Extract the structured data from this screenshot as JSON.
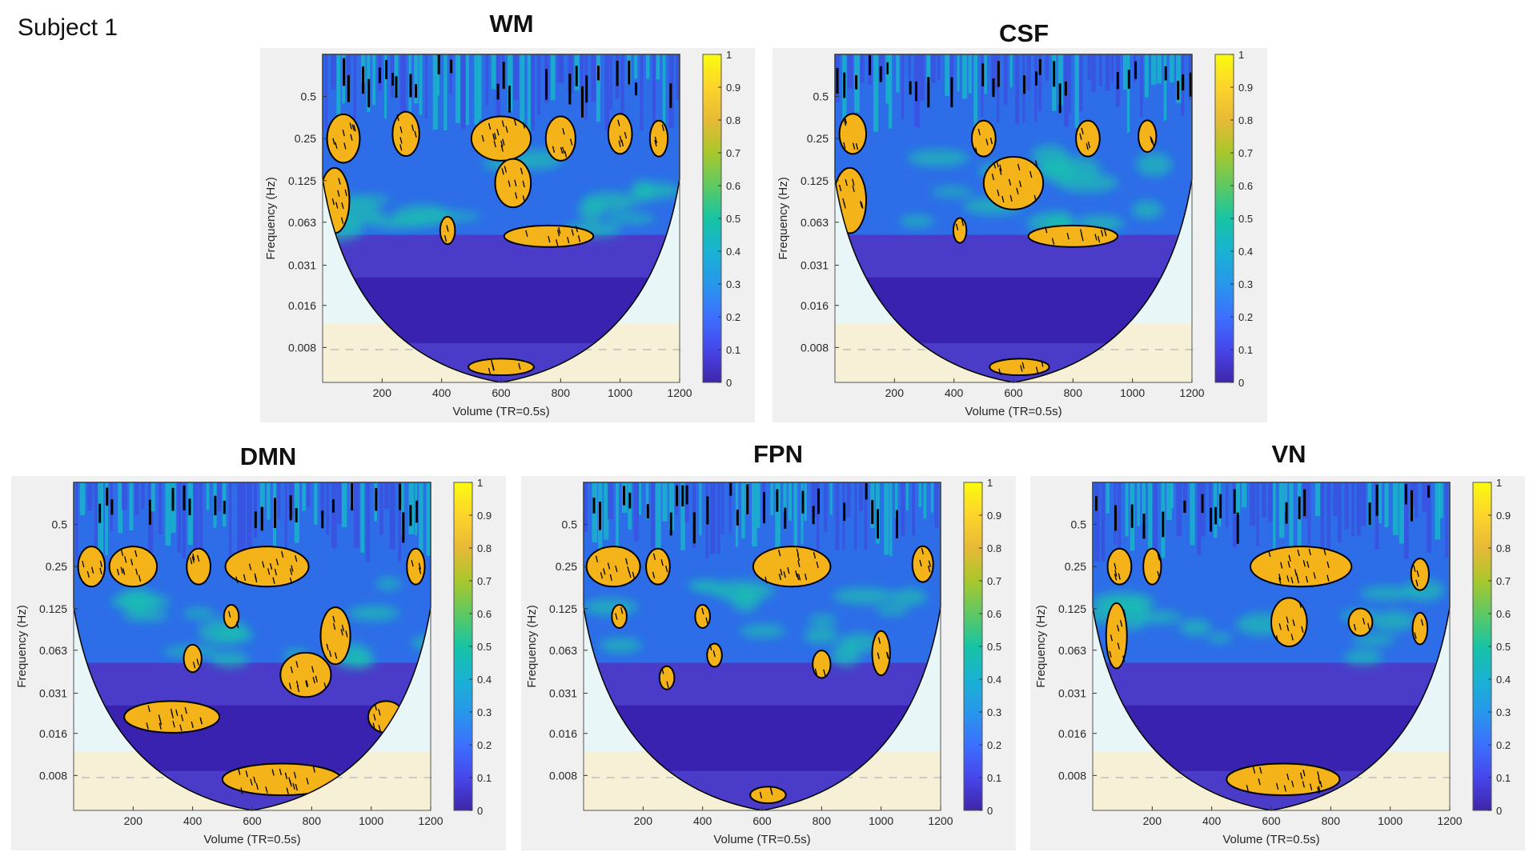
{
  "subject_label": "Subject 1",
  "colors": {
    "panel_bg": "#f0f0f0",
    "contour": "#000000",
    "significant": "#f5b31a",
    "low": "#3d1fa6",
    "high": "#f9fb0e"
  },
  "chart_data": [
    {
      "type": "heatmap",
      "title": "WM",
      "xlabel": "Volume (TR=0.5s)",
      "ylabel": "Frequency (Hz)",
      "xticks": [
        "200",
        "400",
        "600",
        "800",
        "1000",
        "1200"
      ],
      "yticks": [
        "0.5",
        "0.25",
        "0.125",
        "0.063",
        "0.031",
        "0.016",
        "0.008"
      ],
      "colorbar_ticks": [
        "0",
        "0.1",
        "0.2",
        "0.3",
        "0.4",
        "0.5",
        "0.6",
        "0.7",
        "0.8",
        "0.9",
        "1"
      ],
      "xlim": [
        0,
        1200
      ],
      "clim": [
        0,
        1
      ],
      "blobs": [
        {
          "x": 70,
          "f": 0.25,
          "rx": 55,
          "ry": 0.5
        },
        {
          "x": 280,
          "f": 0.27,
          "rx": 45,
          "ry": 0.45
        },
        {
          "x": 40,
          "f": 0.09,
          "rx": 50,
          "ry": 0.7
        },
        {
          "x": 600,
          "f": 0.25,
          "rx": 100,
          "ry": 0.45
        },
        {
          "x": 640,
          "f": 0.12,
          "rx": 60,
          "ry": 0.5
        },
        {
          "x": 800,
          "f": 0.25,
          "rx": 50,
          "ry": 0.45
        },
        {
          "x": 1000,
          "f": 0.27,
          "rx": 40,
          "ry": 0.4
        },
        {
          "x": 1130,
          "f": 0.25,
          "rx": 30,
          "ry": 0.35
        },
        {
          "x": 420,
          "f": 0.055,
          "rx": 25,
          "ry": 0.25
        },
        {
          "x": 760,
          "f": 0.05,
          "rx": 150,
          "ry": 0.18
        },
        {
          "x": 600,
          "f": 0.0058,
          "rx": 110,
          "ry": 0.12
        }
      ]
    },
    {
      "type": "heatmap",
      "title": "CSF",
      "xlabel": "Volume (TR=0.5s)",
      "ylabel": "Frequency (Hz)",
      "xticks": [
        "200",
        "400",
        "600",
        "800",
        "1000",
        "1200"
      ],
      "yticks": [
        "0.5",
        "0.25",
        "0.125",
        "0.063",
        "0.031",
        "0.016",
        "0.008"
      ],
      "colorbar_ticks": [
        "0",
        "0.1",
        "0.2",
        "0.3",
        "0.4",
        "0.5",
        "0.6",
        "0.7",
        "0.8",
        "0.9",
        "1"
      ],
      "xlim": [
        0,
        1200
      ],
      "clim": [
        0,
        1
      ],
      "blobs": [
        {
          "x": 60,
          "f": 0.27,
          "rx": 45,
          "ry": 0.4
        },
        {
          "x": 50,
          "f": 0.09,
          "rx": 55,
          "ry": 0.7
        },
        {
          "x": 600,
          "f": 0.12,
          "rx": 100,
          "ry": 0.55
        },
        {
          "x": 500,
          "f": 0.25,
          "rx": 40,
          "ry": 0.35
        },
        {
          "x": 850,
          "f": 0.25,
          "rx": 40,
          "ry": 0.35
        },
        {
          "x": 1050,
          "f": 0.26,
          "rx": 30,
          "ry": 0.3
        },
        {
          "x": 420,
          "f": 0.055,
          "rx": 22,
          "ry": 0.22
        },
        {
          "x": 800,
          "f": 0.05,
          "rx": 150,
          "ry": 0.18
        },
        {
          "x": 620,
          "f": 0.0058,
          "rx": 100,
          "ry": 0.12
        }
      ]
    },
    {
      "type": "heatmap",
      "title": "DMN",
      "xlabel": "Volume (TR=0.5s)",
      "ylabel": "Frequency (Hz)",
      "xticks": [
        "200",
        "400",
        "600",
        "800",
        "1000",
        "1200"
      ],
      "yticks": [
        "0.5",
        "0.25",
        "0.125",
        "0.063",
        "0.031",
        "0.016",
        "0.008"
      ],
      "colorbar_ticks": [
        "0",
        "0.1",
        "0.2",
        "0.3",
        "0.4",
        "0.5",
        "0.6",
        "0.7",
        "0.8",
        "0.9",
        "1"
      ],
      "xlim": [
        0,
        1200
      ],
      "clim": [
        0,
        1
      ],
      "blobs": [
        {
          "x": 60,
          "f": 0.25,
          "rx": 45,
          "ry": 0.4
        },
        {
          "x": 200,
          "f": 0.25,
          "rx": 80,
          "ry": 0.4
        },
        {
          "x": 420,
          "f": 0.25,
          "rx": 40,
          "ry": 0.35
        },
        {
          "x": 650,
          "f": 0.25,
          "rx": 140,
          "ry": 0.4
        },
        {
          "x": 1150,
          "f": 0.25,
          "rx": 30,
          "ry": 0.35
        },
        {
          "x": 530,
          "f": 0.11,
          "rx": 25,
          "ry": 0.2
        },
        {
          "x": 880,
          "f": 0.08,
          "rx": 50,
          "ry": 0.6
        },
        {
          "x": 780,
          "f": 0.042,
          "rx": 85,
          "ry": 0.45
        },
        {
          "x": 400,
          "f": 0.055,
          "rx": 30,
          "ry": 0.25
        },
        {
          "x": 330,
          "f": 0.021,
          "rx": 160,
          "ry": 0.3
        },
        {
          "x": 1050,
          "f": 0.021,
          "rx": 60,
          "ry": 0.3
        },
        {
          "x": 700,
          "f": 0.0075,
          "rx": 200,
          "ry": 0.3
        }
      ]
    },
    {
      "type": "heatmap",
      "title": "FPN",
      "xlabel": "Volume (TR=0.5s)",
      "ylabel": "Frequency (Hz)",
      "xticks": [
        "200",
        "400",
        "600",
        "800",
        "1000",
        "1200"
      ],
      "yticks": [
        "0.5",
        "0.25",
        "0.125",
        "0.063",
        "0.031",
        "0.016",
        "0.008"
      ],
      "colorbar_ticks": [
        "0",
        "0.1",
        "0.2",
        "0.3",
        "0.4",
        "0.5",
        "0.6",
        "0.7",
        "0.8",
        "0.9",
        "1"
      ],
      "xlim": [
        0,
        1200
      ],
      "clim": [
        0,
        1
      ],
      "blobs": [
        {
          "x": 100,
          "f": 0.25,
          "rx": 90,
          "ry": 0.4
        },
        {
          "x": 250,
          "f": 0.25,
          "rx": 40,
          "ry": 0.35
        },
        {
          "x": 700,
          "f": 0.25,
          "rx": 130,
          "ry": 0.4
        },
        {
          "x": 1140,
          "f": 0.26,
          "rx": 35,
          "ry": 0.35
        },
        {
          "x": 120,
          "f": 0.11,
          "rx": 25,
          "ry": 0.2
        },
        {
          "x": 400,
          "f": 0.11,
          "rx": 25,
          "ry": 0.2
        },
        {
          "x": 440,
          "f": 0.058,
          "rx": 25,
          "ry": 0.2
        },
        {
          "x": 280,
          "f": 0.04,
          "rx": 25,
          "ry": 0.2
        },
        {
          "x": 800,
          "f": 0.05,
          "rx": 30,
          "ry": 0.25
        },
        {
          "x": 1000,
          "f": 0.06,
          "rx": 30,
          "ry": 0.45
        },
        {
          "x": 620,
          "f": 0.0058,
          "rx": 60,
          "ry": 0.12
        }
      ]
    },
    {
      "type": "heatmap",
      "title": "VN",
      "xlabel": "Volume (TR=0.5s)",
      "ylabel": "Frequency (Hz)",
      "xticks": [
        "200",
        "400",
        "600",
        "800",
        "1000",
        "1200"
      ],
      "yticks": [
        "0.5",
        "0.25",
        "0.125",
        "0.063",
        "0.031",
        "0.016",
        "0.008"
      ],
      "colorbar_ticks": [
        "0",
        "0.1",
        "0.2",
        "0.3",
        "0.4",
        "0.5",
        "0.6",
        "0.7",
        "0.8",
        "0.9",
        "1"
      ],
      "xlim": [
        0,
        1200
      ],
      "clim": [
        0,
        1
      ],
      "blobs": [
        {
          "x": 90,
          "f": 0.25,
          "rx": 40,
          "ry": 0.35
        },
        {
          "x": 200,
          "f": 0.25,
          "rx": 30,
          "ry": 0.35
        },
        {
          "x": 700,
          "f": 0.25,
          "rx": 170,
          "ry": 0.4
        },
        {
          "x": 1100,
          "f": 0.22,
          "rx": 30,
          "ry": 0.3
        },
        {
          "x": 80,
          "f": 0.08,
          "rx": 35,
          "ry": 0.7
        },
        {
          "x": 660,
          "f": 0.1,
          "rx": 60,
          "ry": 0.5
        },
        {
          "x": 900,
          "f": 0.1,
          "rx": 40,
          "ry": 0.25
        },
        {
          "x": 1100,
          "f": 0.09,
          "rx": 25,
          "ry": 0.3
        },
        {
          "x": 640,
          "f": 0.0075,
          "rx": 190,
          "ry": 0.3
        }
      ]
    }
  ]
}
